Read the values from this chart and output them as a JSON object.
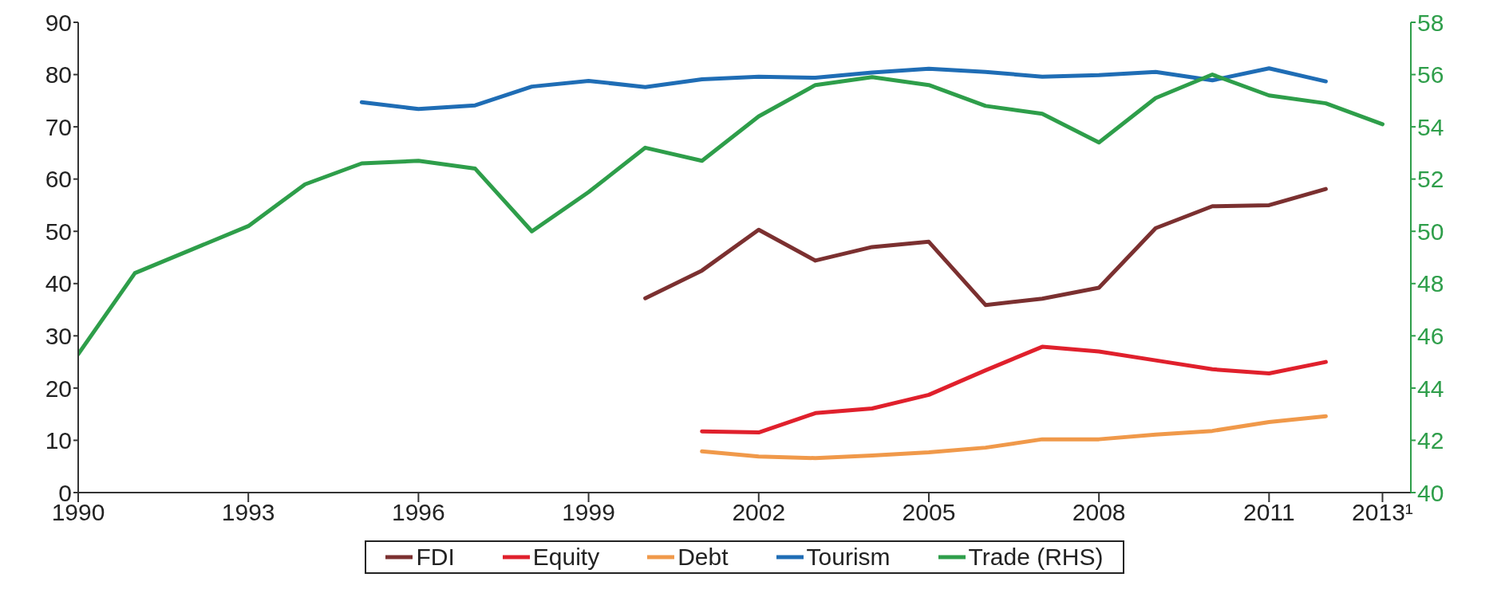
{
  "chart_data": {
    "type": "line",
    "xlim": [
      1990,
      2013.5
    ],
    "xticks": [
      1990,
      1993,
      1996,
      1999,
      2002,
      2005,
      2008,
      2011,
      {
        "value": 2013,
        "label": "2013¹"
      }
    ],
    "ylim": [
      0,
      90
    ],
    "yticks": [
      0,
      10,
      20,
      30,
      40,
      50,
      60,
      70,
      80,
      90
    ],
    "y2lim": [
      40,
      58
    ],
    "y2ticks": [
      40,
      42,
      44,
      46,
      48,
      50,
      52,
      54,
      56,
      58
    ],
    "grid": false,
    "legend": "bottom",
    "marker": "none",
    "line_style": "solid",
    "series": [
      {
        "name": "FDI",
        "color": "#7b3030",
        "x": [
          2000,
          2001,
          2002,
          2003,
          2004,
          2005,
          2006,
          2007,
          2008,
          2009,
          2010,
          2011,
          2012
        ],
        "values": [
          37.2,
          42.5,
          50.3,
          44.4,
          47.0,
          48.0,
          35.9,
          37.1,
          39.2,
          50.6,
          54.8,
          55.0,
          58.1
        ]
      },
      {
        "name": "Equity",
        "color": "#e0202c",
        "x": [
          2001,
          2002,
          2003,
          2004,
          2005,
          2006,
          2007,
          2008,
          2009,
          2010,
          2011,
          2012
        ],
        "values": [
          11.7,
          11.5,
          15.2,
          16.1,
          18.7,
          23.4,
          27.9,
          27.0,
          25.3,
          23.6,
          22.8,
          25.0
        ]
      },
      {
        "name": "Debt",
        "color": "#f0994a",
        "x": [
          2001,
          2002,
          2003,
          2004,
          2005,
          2006,
          2007,
          2008,
          2009,
          2010,
          2011,
          2012
        ],
        "values": [
          7.9,
          6.9,
          6.6,
          7.1,
          7.7,
          8.6,
          10.2,
          10.2,
          11.1,
          11.8,
          13.5,
          14.6
        ]
      },
      {
        "name": "Tourism",
        "color": "#1f6db5",
        "x": [
          1995,
          1996,
          1997,
          1998,
          1999,
          2000,
          2001,
          2002,
          2003,
          2004,
          2005,
          2006,
          2007,
          2008,
          2009,
          2010,
          2011,
          2012
        ],
        "values": [
          74.7,
          73.4,
          74.1,
          77.7,
          78.8,
          77.6,
          79.1,
          79.6,
          79.4,
          80.4,
          81.1,
          80.5,
          79.6,
          79.9,
          80.5,
          78.9,
          81.2,
          78.7
        ]
      },
      {
        "name": "Trade (RHS)",
        "color": "#2e9e4a",
        "axis": "y2",
        "x": [
          1990,
          1991,
          1992,
          1993,
          1994,
          1995,
          1996,
          1997,
          1998,
          1999,
          2000,
          2001,
          2002,
          2003,
          2004,
          2005,
          2006,
          2007,
          2008,
          2009,
          2010,
          2011,
          2012,
          2013
        ],
        "values": [
          45.3,
          48.4,
          49.3,
          50.2,
          51.8,
          52.6,
          52.7,
          52.4,
          50.0,
          51.5,
          53.2,
          52.7,
          54.4,
          55.6,
          55.9,
          55.6,
          54.8,
          54.5,
          53.4,
          55.1,
          56.0,
          55.2,
          54.9,
          54.1
        ]
      }
    ]
  }
}
